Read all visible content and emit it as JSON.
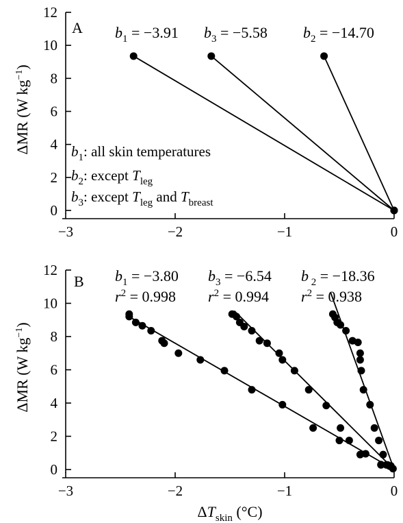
{
  "chart_data": [
    {
      "panel": "A",
      "type": "line",
      "ylabel": "ΔMR (W kg⁻¹)",
      "xlim": [
        -3,
        0
      ],
      "ylim": [
        0,
        12
      ],
      "xticks": [
        "−3",
        "−2",
        "−1",
        "0"
      ],
      "yticks": [
        "0",
        "2",
        "4",
        "6",
        "8",
        "10",
        "12"
      ],
      "series": [
        {
          "name": "b1",
          "label": "b1 = −3.91",
          "x": [
            -2.38,
            0
          ],
          "y": [
            9.35,
            0
          ]
        },
        {
          "name": "b3",
          "label": "b3 = −5.58",
          "x": [
            -1.67,
            0
          ],
          "y": [
            9.35,
            0
          ]
        },
        {
          "name": "b2",
          "label": "b2 = −14.70",
          "x": [
            -0.64,
            0
          ],
          "y": [
            9.35,
            0
          ]
        }
      ],
      "legend": {
        "position": "left",
        "entries": [
          {
            "key": "b",
            "sub": "1",
            "rest": ": all skin temperatures",
            "italic_parts": []
          },
          {
            "key": "b",
            "sub": "2",
            "rest": ": except ",
            "T1": "T",
            "T1sub": "leg",
            "tail": ""
          },
          {
            "key": "b",
            "sub": "3",
            "rest": ": except ",
            "T1": "T",
            "T1sub": "leg",
            "and": " and ",
            "T2": "T",
            "T2sub": "breast"
          }
        ]
      }
    },
    {
      "panel": "B",
      "type": "scatter",
      "xlabel": "ΔTskin (°C)",
      "ylabel": "ΔMR (W kg⁻¹)",
      "xlim": [
        -3,
        0
      ],
      "ylim": [
        0,
        12
      ],
      "xticks": [
        "−3",
        "−2",
        "−1",
        "0"
      ],
      "yticks": [
        "0",
        "2",
        "4",
        "6",
        "8",
        "10",
        "12"
      ],
      "series": [
        {
          "name": "b1",
          "slope": "−3.80",
          "r2": "0.998",
          "line": {
            "x": [
              -2.44,
              0
            ],
            "y": [
              9.27,
              0
            ]
          },
          "points": [
            [
              -2.42,
              9.35
            ],
            [
              -2.42,
              9.2
            ],
            [
              -2.36,
              8.85
            ],
            [
              -2.3,
              8.65
            ],
            [
              -2.22,
              8.35
            ],
            [
              -2.12,
              7.75
            ],
            [
              -2.1,
              7.6
            ],
            [
              -1.97,
              7.0
            ],
            [
              -1.77,
              6.6
            ],
            [
              -1.55,
              5.95
            ],
            [
              -1.3,
              4.8
            ],
            [
              -1.02,
              3.9
            ],
            [
              -0.5,
              1.75
            ],
            [
              -0.31,
              0.9
            ],
            [
              -0.04,
              0.2
            ]
          ]
        },
        {
          "name": "b3",
          "slope": "−6.54",
          "r2": "0.994",
          "line": {
            "x": [
              -1.46,
              0
            ],
            "y": [
              9.55,
              0
            ]
          },
          "points": [
            [
              -1.48,
              9.35
            ],
            [
              -1.44,
              9.2
            ],
            [
              -1.41,
              8.85
            ],
            [
              -1.37,
              8.6
            ],
            [
              -1.3,
              8.35
            ],
            [
              -1.23,
              7.75
            ],
            [
              -1.16,
              7.6
            ],
            [
              -1.05,
              7.0
            ],
            [
              -1.02,
              6.6
            ],
            [
              -0.91,
              5.95
            ],
            [
              -0.78,
              4.8
            ],
            [
              -0.62,
              3.85
            ],
            [
              -0.74,
              2.5
            ],
            [
              -0.49,
              2.5
            ],
            [
              -0.41,
              1.75
            ],
            [
              -0.26,
              0.95
            ],
            [
              -0.12,
              0.28
            ],
            [
              -0.06,
              0.28
            ]
          ]
        },
        {
          "name": "b2",
          "slope": "−18.36",
          "r2": "0.938",
          "line": {
            "x": [
              -0.58,
              0
            ],
            "y": [
              10.65,
              0
            ]
          },
          "points": [
            [
              -0.56,
              9.35
            ],
            [
              -0.54,
              9.15
            ],
            [
              -0.52,
              8.85
            ],
            [
              -0.49,
              8.7
            ],
            [
              -0.44,
              8.35
            ],
            [
              -0.38,
              7.75
            ],
            [
              -0.33,
              7.65
            ],
            [
              -0.31,
              7.0
            ],
            [
              -0.31,
              6.6
            ],
            [
              -0.3,
              5.95
            ],
            [
              -0.28,
              4.8
            ],
            [
              -0.22,
              3.9
            ],
            [
              -0.18,
              2.5
            ],
            [
              -0.14,
              1.75
            ],
            [
              -0.1,
              0.9
            ],
            [
              -0.12,
              0.3
            ],
            [
              -0.07,
              0.28
            ],
            [
              -0.03,
              0.22
            ],
            [
              -0.01,
              0.05
            ]
          ]
        }
      ]
    }
  ]
}
